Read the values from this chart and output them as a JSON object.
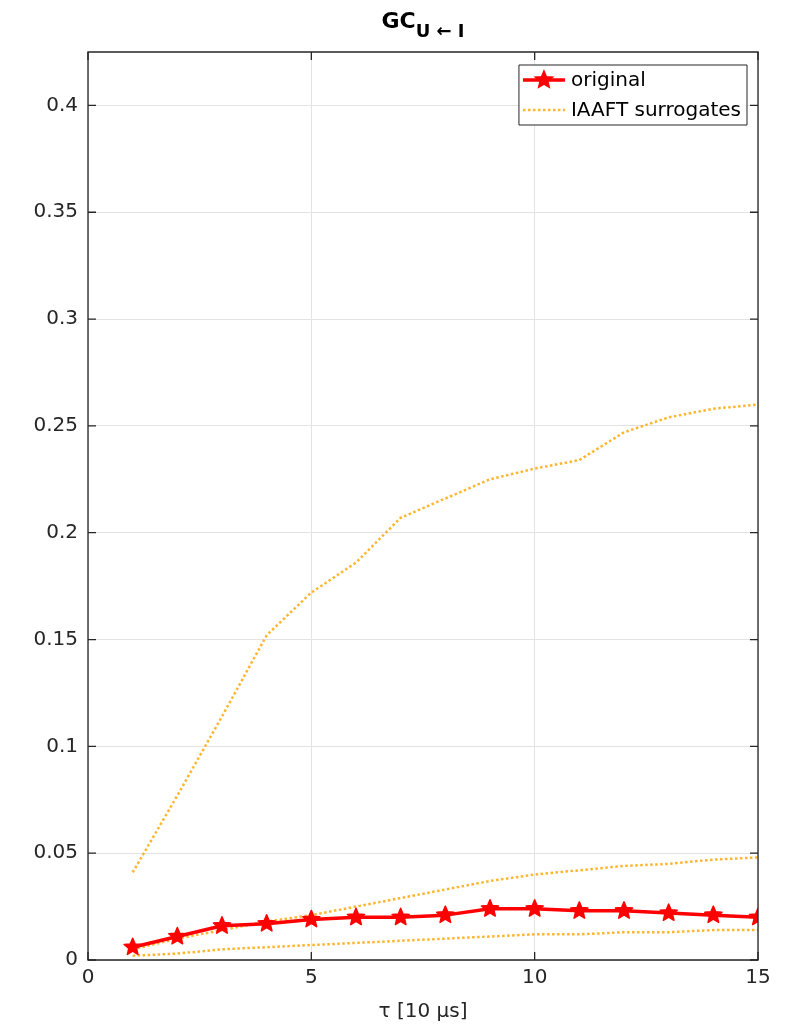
{
  "chart_data": {
    "type": "line",
    "title": "GC$_{U ← I}$",
    "xlabel": "τ [10 μs]",
    "x": [
      1,
      2,
      3,
      4,
      5,
      6,
      7,
      8,
      9,
      10,
      11,
      12,
      13,
      14,
      15
    ],
    "xlim": [
      0,
      15
    ],
    "xticks": [
      0,
      5,
      10,
      15
    ],
    "ylim": [
      0,
      0.425
    ],
    "yticks": [
      0,
      0.05,
      0.1,
      0.15,
      0.2,
      0.25,
      0.3,
      0.35,
      0.4
    ],
    "grid": true,
    "legend": "top right",
    "series": [
      {
        "name": "original",
        "color": "#ff0000",
        "marker": "star",
        "line_style": "solid",
        "values": [
          0.006,
          0.011,
          0.016,
          0.017,
          0.019,
          0.02,
          0.02,
          0.021,
          0.024,
          0.024,
          0.023,
          0.023,
          0.022,
          0.021,
          0.02
        ]
      },
      {
        "name": "IAAFT surrogates",
        "color": "#ffb52e",
        "marker": "none",
        "line_style": "dotted",
        "values": [
          0.041,
          0.077,
          0.114,
          0.152,
          0.172,
          0.186,
          0.207,
          0.216,
          0.225,
          0.23,
          0.234,
          0.247,
          0.254,
          0.258,
          0.26
        ]
      },
      {
        "color": "#ffb52e",
        "marker": "none",
        "line_style": "dotted",
        "values": [
          0.005,
          0.01,
          0.014,
          0.018,
          0.021,
          0.025,
          0.029,
          0.033,
          0.037,
          0.04,
          0.042,
          0.044,
          0.045,
          0.047,
          0.048
        ]
      },
      {
        "color": "#ffb52e",
        "marker": "none",
        "line_style": "dotted",
        "values": [
          0.002,
          0.003,
          0.005,
          0.006,
          0.007,
          0.008,
          0.009,
          0.01,
          0.011,
          0.012,
          0.012,
          0.013,
          0.013,
          0.014,
          0.014
        ]
      }
    ]
  }
}
